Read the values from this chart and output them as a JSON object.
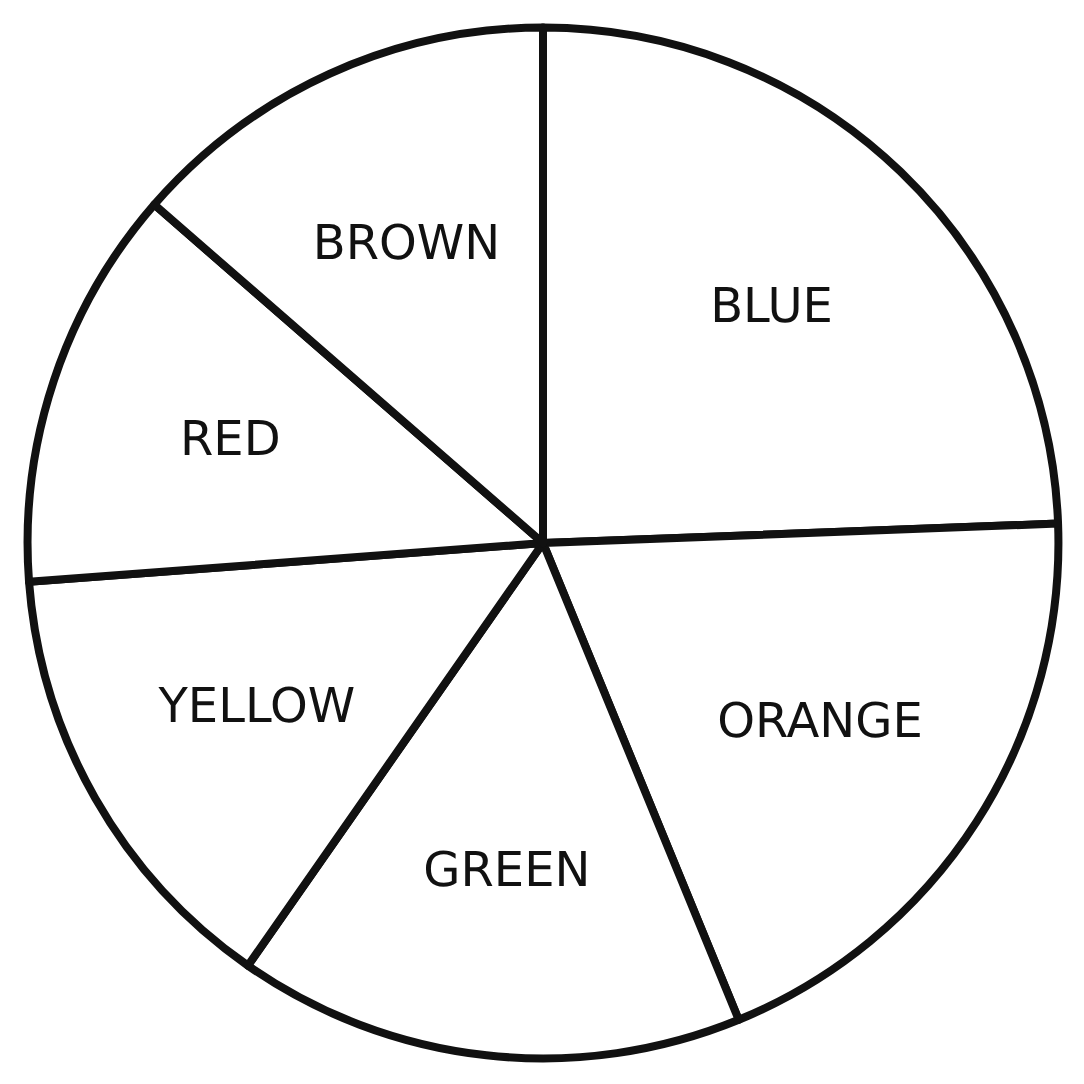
{
  "chart_data": {
    "type": "pie",
    "categories": [
      "BLUE",
      "ORANGE",
      "GREEN",
      "YELLOW",
      "RED",
      "BROWN"
    ],
    "values": [
      24.4,
      19.4,
      15.9,
      14.1,
      12.6,
      13.6
    ],
    "colors": [
      "#ffffff",
      "#ffffff",
      "#ffffff",
      "#ffffff",
      "#ffffff",
      "#ffffff"
    ]
  }
}
